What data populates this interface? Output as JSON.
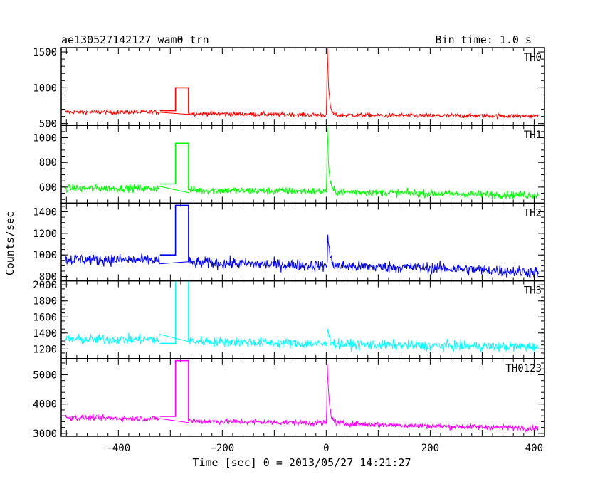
{
  "chart_data": {
    "type": "line",
    "title": "ae130527142127_wam0_trn",
    "subtitle": "Bin time: 1.0 s",
    "xlabel": "Time [sec] 0 = 2013/05/27 14:21:27",
    "ylabel": "Counts/sec",
    "xlim": [
      -510,
      420
    ],
    "x_ticks": [
      -400,
      -200,
      0,
      200,
      400
    ],
    "x_tick_labels": [
      "−400",
      "−200",
      "0",
      "200",
      "400"
    ],
    "grid": false,
    "legend": "none",
    "panels": [
      {
        "label": "TH0",
        "color": "#ff0000",
        "ylim": [
          475,
          1560
        ],
        "y_ticks": [
          500,
          1000,
          1500
        ],
        "y_tick_labels": [
          "500",
          "1000",
          "1500"
        ],
        "baseline": [
          [
            -500,
            660
          ],
          [
            -320,
            660
          ],
          [
            -260,
            640
          ],
          [
            0,
            620
          ],
          [
            200,
            610
          ],
          [
            400,
            605
          ]
        ],
        "noise": 22,
        "gap": [
          -320,
          -265
        ],
        "gap_steps": [
          [
            -320,
            680
          ],
          [
            -290,
            1000
          ],
          [
            -265,
            1000
          ]
        ],
        "flare": {
          "x": 2,
          "peak": 1560,
          "decay": 3
        }
      },
      {
        "label": "TH1",
        "color": "#00ff00",
        "ylim": [
          470,
          1100
        ],
        "y_ticks": [
          600,
          800,
          1000
        ],
        "y_tick_labels": [
          "600",
          "800",
          "1000"
        ],
        "baseline": [
          [
            -500,
            590
          ],
          [
            -320,
            590
          ],
          [
            -260,
            575
          ],
          [
            0,
            565
          ],
          [
            200,
            548
          ],
          [
            400,
            535
          ]
        ],
        "noise": 22,
        "gap": [
          -320,
          -265
        ],
        "gap_steps": [
          [
            -320,
            625
          ],
          [
            -290,
            955
          ],
          [
            -265,
            955
          ]
        ],
        "flare": {
          "x": 2,
          "peak": 1100,
          "decay": 3
        }
      },
      {
        "label": "TH2",
        "color": "#0000ff",
        "ylim": [
          760,
          1480
        ],
        "y_ticks": [
          800,
          1000,
          1200,
          1400
        ],
        "y_tick_labels": [
          "800",
          "1000",
          "1200",
          "1400"
        ],
        "baseline": [
          [
            -500,
            960
          ],
          [
            -320,
            950
          ],
          [
            -260,
            930
          ],
          [
            0,
            900
          ],
          [
            200,
            880
          ],
          [
            400,
            840
          ]
        ],
        "noise": 38,
        "gap": [
          -320,
          -265
        ],
        "gap_steps": [
          [
            -320,
            1000
          ],
          [
            -290,
            1460
          ],
          [
            -265,
            1460
          ]
        ],
        "flare": {
          "x": 3,
          "peak": 1180,
          "decay": 4
        }
      },
      {
        "label": "TH3",
        "color": "#00ffff",
        "ylim": [
          1080,
          2050
        ],
        "y_ticks": [
          1200,
          1400,
          1600,
          1800,
          2000
        ],
        "y_tick_labels": [
          "1200",
          "1400",
          "1600",
          "1800",
          "2000"
        ],
        "baseline": [
          [
            -500,
            1320
          ],
          [
            -320,
            1320
          ],
          [
            -260,
            1300
          ],
          [
            0,
            1260
          ],
          [
            200,
            1240
          ],
          [
            400,
            1225
          ]
        ],
        "noise": 45,
        "gap": [
          -320,
          -265
        ],
        "gap_steps": [
          [
            -320,
            1270
          ],
          [
            -290,
            2050
          ],
          [
            -265,
            2050
          ]
        ],
        "flare": {
          "x": 3,
          "peak": 1480,
          "decay": 4
        }
      },
      {
        "label": "TH0123",
        "color": "#ff00ff",
        "ylim": [
          2900,
          5550
        ],
        "y_ticks": [
          3000,
          4000,
          5000
        ],
        "y_tick_labels": [
          "3000",
          "4000",
          "5000"
        ],
        "baseline": [
          [
            -500,
            3540
          ],
          [
            -320,
            3500
          ],
          [
            -260,
            3420
          ],
          [
            0,
            3350
          ],
          [
            200,
            3250
          ],
          [
            400,
            3180
          ]
        ],
        "noise": 70,
        "gap": [
          -320,
          -265
        ],
        "gap_steps": [
          [
            -320,
            3580
          ],
          [
            -290,
            5480
          ],
          [
            -265,
            5480
          ]
        ],
        "flare": {
          "x": 2,
          "peak": 5300,
          "decay": 4
        }
      }
    ]
  }
}
